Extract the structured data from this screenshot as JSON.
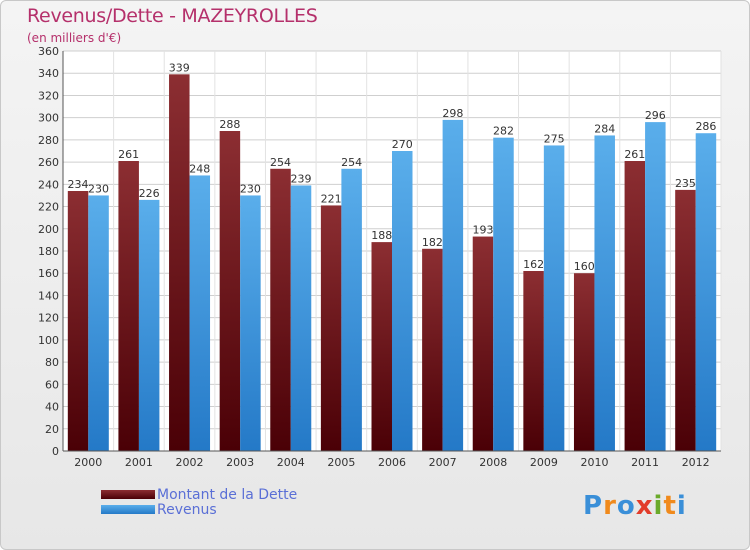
{
  "header": {
    "title": "Revenus/Dette - MAZEYROLLES",
    "subtitle": "(en milliers d'€)"
  },
  "legend": {
    "items": [
      {
        "label": "Montant de la Dette",
        "color": "#6b0d14"
      },
      {
        "label": "Revenus",
        "color": "#3a94dd"
      }
    ]
  },
  "logo": {
    "letters": [
      "P",
      "r",
      "o",
      "x",
      "i",
      "t",
      "i"
    ],
    "colors": [
      "#3a8fd8",
      "#f08a1c",
      "#3a8fd8",
      "#e23c2a",
      "#6aaa2a",
      "#f08a1c",
      "#3a8fd8"
    ]
  },
  "chart_data": {
    "type": "bar",
    "categories": [
      "2000",
      "2001",
      "2002",
      "2003",
      "2004",
      "2005",
      "2006",
      "2007",
      "2008",
      "2009",
      "2010",
      "2011",
      "2012"
    ],
    "series": [
      {
        "name": "Montant de la Dette",
        "values": [
          234,
          261,
          339,
          288,
          254,
          221,
          188,
          182,
          193,
          162,
          160,
          261,
          235
        ]
      },
      {
        "name": "Revenus",
        "values": [
          230,
          226,
          248,
          230,
          239,
          254,
          270,
          298,
          282,
          275,
          284,
          296,
          286
        ]
      }
    ],
    "ylim": [
      0,
      360
    ],
    "ytick_step": 20,
    "grid": true,
    "data_labels": true,
    "legend_position": "bottom-left"
  }
}
